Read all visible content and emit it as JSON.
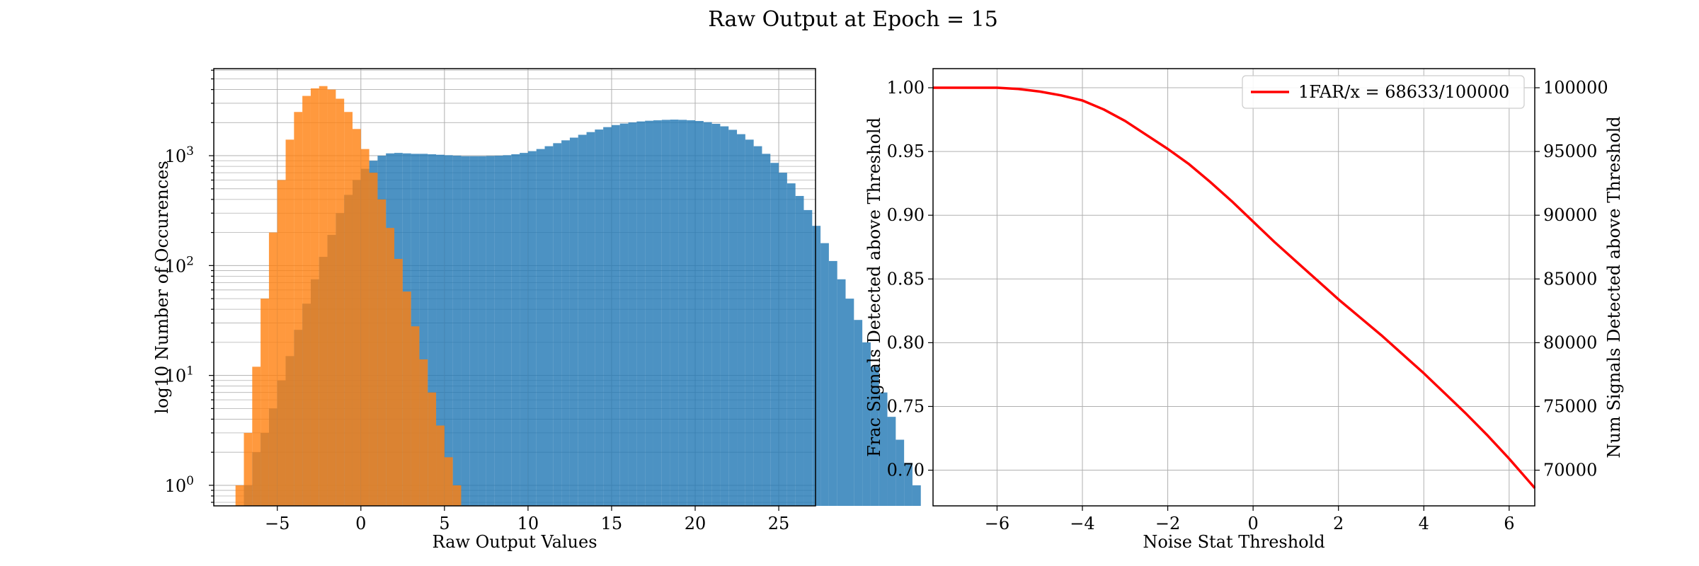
{
  "figure": {
    "title": "Raw Output at Epoch = 15"
  },
  "colors": {
    "signal": "#1f77b4",
    "noise": "#ff7f0e",
    "curve": "#ff0000",
    "grid": "#b0b0b0"
  },
  "chart_data": [
    {
      "type": "bar",
      "subtype": "histogram",
      "xlabel": "Raw Output Values",
      "ylabel": "log10 Number of Occurences",
      "yscale": "log",
      "xlim": [
        -8.8,
        27.2
      ],
      "ylim": [
        0.65,
        6200
      ],
      "grid": true,
      "xticks": [
        -5,
        0,
        5,
        10,
        15,
        20,
        25
      ],
      "xtick_labels": [
        "−5",
        "0",
        "5",
        "10",
        "15",
        "20",
        "25"
      ],
      "yticks": [
        1,
        10,
        100,
        1000
      ],
      "ytick_bases": [
        "10",
        "10",
        "10",
        "10"
      ],
      "ytick_exps": [
        "0",
        "1",
        "2",
        "3"
      ],
      "bin_width": 0.5,
      "series": [
        {
          "color": "#1f77b4",
          "alpha": 0.8,
          "x_start": -7.0,
          "values": [
            1,
            2,
            3,
            5,
            9,
            15,
            26,
            45,
            75,
            120,
            190,
            300,
            440,
            600,
            760,
            900,
            1000,
            1050,
            1060,
            1050,
            1040,
            1040,
            1030,
            1020,
            1010,
            1000,
            990,
            990,
            990,
            995,
            1000,
            1010,
            1030,
            1060,
            1100,
            1150,
            1220,
            1300,
            1380,
            1460,
            1550,
            1640,
            1730,
            1820,
            1900,
            1960,
            2010,
            2050,
            2080,
            2100,
            2120,
            2130,
            2120,
            2100,
            2070,
            2020,
            1950,
            1850,
            1720,
            1570,
            1400,
            1220,
            1040,
            860,
            700,
            560,
            430,
            320,
            230,
            160,
            110,
            75,
            50,
            32,
            20,
            12,
            7,
            4.2,
            2.6,
            1.6,
            1
          ]
        },
        {
          "color": "#ff7f0e",
          "alpha": 0.8,
          "x_start": -7.5,
          "values": [
            1,
            3,
            12,
            50,
            200,
            600,
            1400,
            2500,
            3500,
            4100,
            4300,
            4000,
            3300,
            2500,
            1750,
            1150,
            700,
            400,
            220,
            115,
            58,
            28,
            14,
            7,
            3.5,
            1.8,
            1
          ]
        }
      ]
    },
    {
      "type": "line",
      "xlabel": "Noise Stat Threshold",
      "ylabel": "Frac Signals Detected above Threshold",
      "y2label": "Num Signals Detected above Threshold",
      "xlim": [
        -7.5,
        6.6
      ],
      "ylim": [
        0.672,
        1.015
      ],
      "y2lim": [
        67200,
        101500
      ],
      "grid": true,
      "legend_location": "upper right",
      "xticks": [
        -6,
        -4,
        -2,
        0,
        2,
        4,
        6
      ],
      "xtick_labels": [
        "−6",
        "−4",
        "−2",
        "0",
        "2",
        "4",
        "6"
      ],
      "yticks": [
        0.7,
        0.75,
        0.8,
        0.85,
        0.9,
        0.95,
        1.0
      ],
      "ytick_labels": [
        "0.70",
        "0.75",
        "0.80",
        "0.85",
        "0.90",
        "0.95",
        "1.00"
      ],
      "y2ticks": [
        70000,
        75000,
        80000,
        85000,
        90000,
        95000,
        100000
      ],
      "y2tick_labels": [
        "70000",
        "75000",
        "80000",
        "85000",
        "90000",
        "95000",
        "100000"
      ],
      "series": [
        {
          "name": "1FAR/x = 68633/100000",
          "color": "#ff0000",
          "x": [
            -7.5,
            -6.5,
            -6.0,
            -5.5,
            -5.0,
            -4.5,
            -4.0,
            -3.5,
            -3.0,
            -2.5,
            -2.0,
            -1.5,
            -1.0,
            -0.5,
            0.0,
            0.5,
            1.0,
            1.5,
            2.0,
            2.5,
            3.0,
            3.5,
            4.0,
            4.5,
            5.0,
            5.5,
            6.0,
            6.6
          ],
          "y": [
            1.0,
            1.0,
            1.0,
            0.999,
            0.997,
            0.994,
            0.99,
            0.983,
            0.974,
            0.963,
            0.952,
            0.94,
            0.926,
            0.911,
            0.895,
            0.879,
            0.864,
            0.849,
            0.834,
            0.82,
            0.806,
            0.791,
            0.776,
            0.76,
            0.744,
            0.727,
            0.709,
            0.686
          ]
        }
      ]
    }
  ]
}
